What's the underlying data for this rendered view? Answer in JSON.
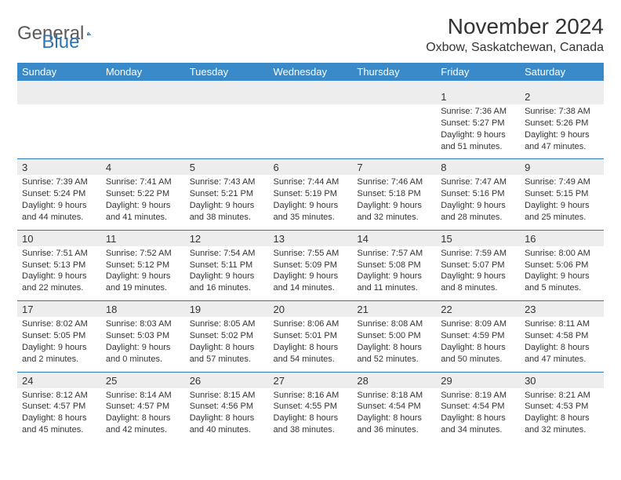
{
  "logo": {
    "text1": "General",
    "text2": "Blue",
    "color1": "#5a5a5a",
    "color2": "#2e75b6"
  },
  "title": "November 2024",
  "location": "Oxbow, Saskatchewan, Canada",
  "colors": {
    "header_bg": "#3a8ac9",
    "header_text": "#ffffff",
    "daynum_bg": "#ededed",
    "divider": "#2e75b6",
    "body_text": "#333333",
    "page_bg": "#ffffff"
  },
  "fonts": {
    "title_size": 28,
    "location_size": 16,
    "dayhead_size": 13,
    "daynum_size": 13,
    "detail_size": 11
  },
  "day_names": [
    "Sunday",
    "Monday",
    "Tuesday",
    "Wednesday",
    "Thursday",
    "Friday",
    "Saturday"
  ],
  "weeks": [
    [
      {
        "num": "",
        "sunrise": "",
        "sunset": "",
        "daylight": ""
      },
      {
        "num": "",
        "sunrise": "",
        "sunset": "",
        "daylight": ""
      },
      {
        "num": "",
        "sunrise": "",
        "sunset": "",
        "daylight": ""
      },
      {
        "num": "",
        "sunrise": "",
        "sunset": "",
        "daylight": ""
      },
      {
        "num": "",
        "sunrise": "",
        "sunset": "",
        "daylight": ""
      },
      {
        "num": "1",
        "sunrise": "Sunrise: 7:36 AM",
        "sunset": "Sunset: 5:27 PM",
        "daylight": "Daylight: 9 hours and 51 minutes."
      },
      {
        "num": "2",
        "sunrise": "Sunrise: 7:38 AM",
        "sunset": "Sunset: 5:26 PM",
        "daylight": "Daylight: 9 hours and 47 minutes."
      }
    ],
    [
      {
        "num": "3",
        "sunrise": "Sunrise: 7:39 AM",
        "sunset": "Sunset: 5:24 PM",
        "daylight": "Daylight: 9 hours and 44 minutes."
      },
      {
        "num": "4",
        "sunrise": "Sunrise: 7:41 AM",
        "sunset": "Sunset: 5:22 PM",
        "daylight": "Daylight: 9 hours and 41 minutes."
      },
      {
        "num": "5",
        "sunrise": "Sunrise: 7:43 AM",
        "sunset": "Sunset: 5:21 PM",
        "daylight": "Daylight: 9 hours and 38 minutes."
      },
      {
        "num": "6",
        "sunrise": "Sunrise: 7:44 AM",
        "sunset": "Sunset: 5:19 PM",
        "daylight": "Daylight: 9 hours and 35 minutes."
      },
      {
        "num": "7",
        "sunrise": "Sunrise: 7:46 AM",
        "sunset": "Sunset: 5:18 PM",
        "daylight": "Daylight: 9 hours and 32 minutes."
      },
      {
        "num": "8",
        "sunrise": "Sunrise: 7:47 AM",
        "sunset": "Sunset: 5:16 PM",
        "daylight": "Daylight: 9 hours and 28 minutes."
      },
      {
        "num": "9",
        "sunrise": "Sunrise: 7:49 AM",
        "sunset": "Sunset: 5:15 PM",
        "daylight": "Daylight: 9 hours and 25 minutes."
      }
    ],
    [
      {
        "num": "10",
        "sunrise": "Sunrise: 7:51 AM",
        "sunset": "Sunset: 5:13 PM",
        "daylight": "Daylight: 9 hours and 22 minutes."
      },
      {
        "num": "11",
        "sunrise": "Sunrise: 7:52 AM",
        "sunset": "Sunset: 5:12 PM",
        "daylight": "Daylight: 9 hours and 19 minutes."
      },
      {
        "num": "12",
        "sunrise": "Sunrise: 7:54 AM",
        "sunset": "Sunset: 5:11 PM",
        "daylight": "Daylight: 9 hours and 16 minutes."
      },
      {
        "num": "13",
        "sunrise": "Sunrise: 7:55 AM",
        "sunset": "Sunset: 5:09 PM",
        "daylight": "Daylight: 9 hours and 14 minutes."
      },
      {
        "num": "14",
        "sunrise": "Sunrise: 7:57 AM",
        "sunset": "Sunset: 5:08 PM",
        "daylight": "Daylight: 9 hours and 11 minutes."
      },
      {
        "num": "15",
        "sunrise": "Sunrise: 7:59 AM",
        "sunset": "Sunset: 5:07 PM",
        "daylight": "Daylight: 9 hours and 8 minutes."
      },
      {
        "num": "16",
        "sunrise": "Sunrise: 8:00 AM",
        "sunset": "Sunset: 5:06 PM",
        "daylight": "Daylight: 9 hours and 5 minutes."
      }
    ],
    [
      {
        "num": "17",
        "sunrise": "Sunrise: 8:02 AM",
        "sunset": "Sunset: 5:05 PM",
        "daylight": "Daylight: 9 hours and 2 minutes."
      },
      {
        "num": "18",
        "sunrise": "Sunrise: 8:03 AM",
        "sunset": "Sunset: 5:03 PM",
        "daylight": "Daylight: 9 hours and 0 minutes."
      },
      {
        "num": "19",
        "sunrise": "Sunrise: 8:05 AM",
        "sunset": "Sunset: 5:02 PM",
        "daylight": "Daylight: 8 hours and 57 minutes."
      },
      {
        "num": "20",
        "sunrise": "Sunrise: 8:06 AM",
        "sunset": "Sunset: 5:01 PM",
        "daylight": "Daylight: 8 hours and 54 minutes."
      },
      {
        "num": "21",
        "sunrise": "Sunrise: 8:08 AM",
        "sunset": "Sunset: 5:00 PM",
        "daylight": "Daylight: 8 hours and 52 minutes."
      },
      {
        "num": "22",
        "sunrise": "Sunrise: 8:09 AM",
        "sunset": "Sunset: 4:59 PM",
        "daylight": "Daylight: 8 hours and 50 minutes."
      },
      {
        "num": "23",
        "sunrise": "Sunrise: 8:11 AM",
        "sunset": "Sunset: 4:58 PM",
        "daylight": "Daylight: 8 hours and 47 minutes."
      }
    ],
    [
      {
        "num": "24",
        "sunrise": "Sunrise: 8:12 AM",
        "sunset": "Sunset: 4:57 PM",
        "daylight": "Daylight: 8 hours and 45 minutes."
      },
      {
        "num": "25",
        "sunrise": "Sunrise: 8:14 AM",
        "sunset": "Sunset: 4:57 PM",
        "daylight": "Daylight: 8 hours and 42 minutes."
      },
      {
        "num": "26",
        "sunrise": "Sunrise: 8:15 AM",
        "sunset": "Sunset: 4:56 PM",
        "daylight": "Daylight: 8 hours and 40 minutes."
      },
      {
        "num": "27",
        "sunrise": "Sunrise: 8:16 AM",
        "sunset": "Sunset: 4:55 PM",
        "daylight": "Daylight: 8 hours and 38 minutes."
      },
      {
        "num": "28",
        "sunrise": "Sunrise: 8:18 AM",
        "sunset": "Sunset: 4:54 PM",
        "daylight": "Daylight: 8 hours and 36 minutes."
      },
      {
        "num": "29",
        "sunrise": "Sunrise: 8:19 AM",
        "sunset": "Sunset: 4:54 PM",
        "daylight": "Daylight: 8 hours and 34 minutes."
      },
      {
        "num": "30",
        "sunrise": "Sunrise: 8:21 AM",
        "sunset": "Sunset: 4:53 PM",
        "daylight": "Daylight: 8 hours and 32 minutes."
      }
    ]
  ]
}
